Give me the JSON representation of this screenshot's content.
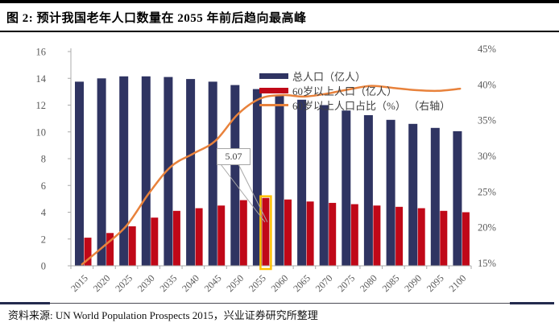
{
  "title": {
    "text": "图 2: 预计我国老年人口数量在 2055 年前后趋向最高峰"
  },
  "source": {
    "label": "资料来源: ",
    "text": "UN World Population Prospects 2015，兴业证券研究所整理"
  },
  "colors": {
    "total_bar": "#2F3462",
    "elderly_bar": "#C00818",
    "share_line": "#E8823C",
    "highlight": "#FFC000",
    "axis": "#ABABAB",
    "axis_text": "#595959"
  },
  "chart_data": {
    "type": "bar",
    "subtype": "grouped bars with secondary-axis line (combo chart)",
    "categories": [
      "2015",
      "2020",
      "2025",
      "2030",
      "2035",
      "2040",
      "2045",
      "2050",
      "2055",
      "2060",
      "2065",
      "2070",
      "2075",
      "2080",
      "2085",
      "2090",
      "2095",
      "2100"
    ],
    "series": [
      {
        "name": "总人口（亿人）",
        "type": "bar",
        "axis": "left",
        "color": "#2F3462",
        "values": [
          13.75,
          14.0,
          14.15,
          14.15,
          14.1,
          13.95,
          13.75,
          13.5,
          13.2,
          12.75,
          12.4,
          12.0,
          11.6,
          11.25,
          10.9,
          10.6,
          10.3,
          10.05
        ]
      },
      {
        "name": "60岁以上人口（亿人）",
        "type": "bar",
        "axis": "left",
        "color": "#C00818",
        "values": [
          2.1,
          2.45,
          2.95,
          3.6,
          4.1,
          4.3,
          4.5,
          4.9,
          5.07,
          4.95,
          4.8,
          4.7,
          4.6,
          4.5,
          4.4,
          4.3,
          4.1,
          4.0
        ]
      },
      {
        "name": "60岁以上人口占比（%） （右轴）",
        "type": "line",
        "axis": "right",
        "color": "#E8823C",
        "values": [
          15.2,
          17.8,
          20.6,
          25.1,
          28.9,
          30.7,
          32.5,
          36.2,
          38.4,
          38.9,
          38.7,
          39.1,
          39.7,
          40.2,
          39.9,
          39.6,
          39.5,
          39.8
        ]
      }
    ],
    "left_axis": {
      "min": 0,
      "max": 16,
      "tick_labels": [
        "0",
        "2",
        "4",
        "6",
        "8",
        "10",
        "12",
        "14",
        "16"
      ]
    },
    "right_axis": {
      "min": 15,
      "max": 45,
      "tick_labels": [
        "15%",
        "20%",
        "25%",
        "30%",
        "35%",
        "40%",
        "45%"
      ]
    },
    "grid": false,
    "legend_position": "inside-top-center",
    "annotation": {
      "label": "5.07",
      "category": "2055",
      "series": "60岁以上人口（亿人）",
      "value": 5.07,
      "highlight_color": "#FFC000"
    }
  }
}
